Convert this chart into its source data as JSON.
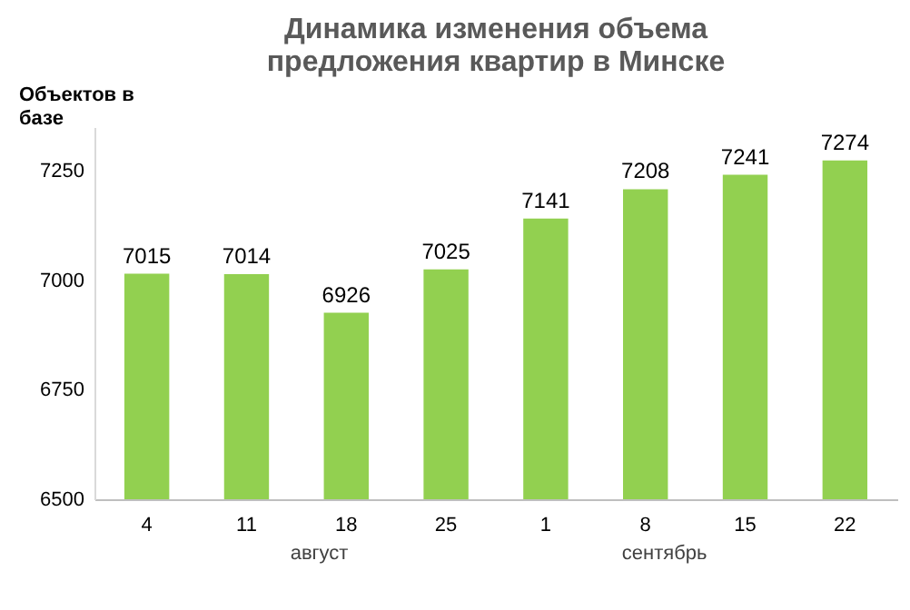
{
  "chart_data": {
    "type": "bar",
    "title": "Динамика изменения объема предложения квартир в Минске",
    "ylabel": "Объектов в базе",
    "categories": [
      "4",
      "11",
      "18",
      "25",
      "1",
      "8",
      "15",
      "22"
    ],
    "values": [
      7015,
      7014,
      6926,
      7025,
      7141,
      7208,
      7241,
      7274
    ],
    "color": "#92d050",
    "ylim": [
      6500,
      7350
    ],
    "yticks": [
      6500,
      6750,
      7000,
      7250
    ],
    "grid": false,
    "data_labels": true,
    "annotations": [
      "август",
      "сентябрь"
    ]
  }
}
